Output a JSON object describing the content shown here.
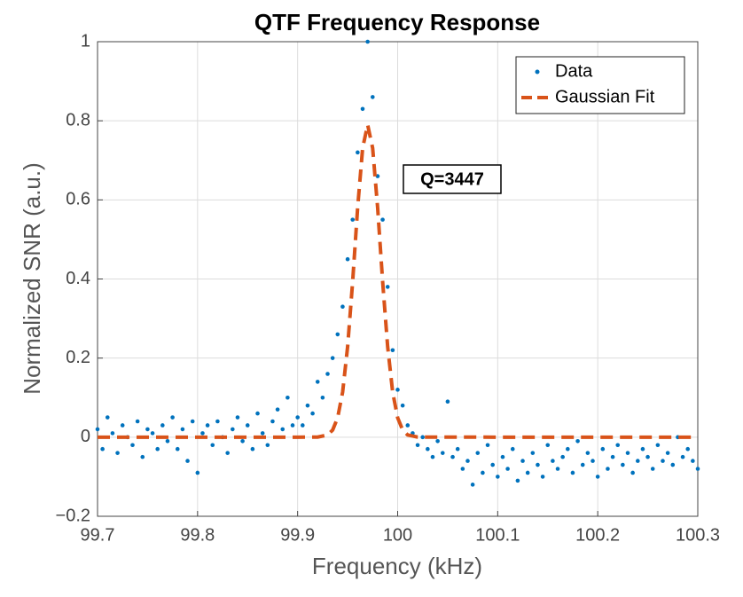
{
  "chart_data": {
    "type": "scatter",
    "title": "QTF Frequency Response",
    "xlabel": "Frequency (kHz)",
    "ylabel": "Normalized SNR (a.u.)",
    "annotation": "Q=3447",
    "xlim": [
      99.7,
      100.3
    ],
    "ylim": [
      -0.2,
      1
    ],
    "xticks": [
      99.7,
      99.8,
      99.9,
      100,
      100.1,
      100.2,
      100.3
    ],
    "yticks": [
      {
        "value": -0.2,
        "label": "−0.2"
      },
      0,
      0.2,
      0.4,
      0.6,
      0.8,
      1
    ],
    "grid": true,
    "legend": "upper right",
    "series": [
      {
        "name": "Data",
        "type": "scatter",
        "color": "#0072bd",
        "x": [
          99.7,
          99.705,
          99.71,
          99.715,
          99.72,
          99.725,
          99.73,
          99.735,
          99.74,
          99.745,
          99.75,
          99.755,
          99.76,
          99.765,
          99.77,
          99.775,
          99.78,
          99.785,
          99.79,
          99.795,
          99.8,
          99.805,
          99.81,
          99.815,
          99.82,
          99.825,
          99.83,
          99.835,
          99.84,
          99.845,
          99.85,
          99.855,
          99.86,
          99.865,
          99.87,
          99.875,
          99.88,
          99.885,
          99.89,
          99.895,
          99.9,
          99.905,
          99.91,
          99.915,
          99.92,
          99.925,
          99.93,
          99.935,
          99.94,
          99.945,
          99.95,
          99.955,
          99.96,
          99.965,
          99.97,
          99.975,
          99.98,
          99.985,
          99.99,
          99.995,
          100,
          100.005,
          100.01,
          100.015,
          100.02,
          100.025,
          100.03,
          100.035,
          100.04,
          100.045,
          100.05,
          100.055,
          100.06,
          100.065,
          100.07,
          100.075,
          100.08,
          100.085,
          100.09,
          100.095,
          100.1,
          100.105,
          100.11,
          100.115,
          100.12,
          100.125,
          100.13,
          100.135,
          100.14,
          100.145,
          100.15,
          100.155,
          100.16,
          100.165,
          100.17,
          100.175,
          100.18,
          100.185,
          100.19,
          100.195,
          100.2,
          100.205,
          100.21,
          100.215,
          100.22,
          100.225,
          100.23,
          100.235,
          100.24,
          100.245,
          100.25,
          100.255,
          100.26,
          100.265,
          100.27,
          100.275,
          100.28,
          100.285,
          100.29,
          100.295,
          100.3
        ],
        "values": [
          0.02,
          -0.03,
          0.05,
          0.01,
          -0.04,
          0.03,
          0.0,
          -0.02,
          0.04,
          -0.05,
          0.02,
          0.01,
          -0.03,
          0.03,
          -0.01,
          0.05,
          -0.03,
          0.02,
          -0.06,
          0.04,
          -0.09,
          0.01,
          0.03,
          -0.02,
          0.04,
          0.0,
          -0.04,
          0.02,
          0.05,
          -0.01,
          0.03,
          -0.03,
          0.06,
          0.01,
          -0.02,
          0.04,
          0.07,
          0.02,
          0.1,
          0.03,
          0.05,
          0.03,
          0.08,
          0.06,
          0.14,
          0.1,
          0.16,
          0.2,
          0.26,
          0.33,
          0.45,
          0.55,
          0.72,
          0.83,
          1.0,
          0.86,
          0.66,
          0.55,
          0.38,
          0.22,
          0.12,
          0.08,
          0.03,
          0.01,
          -0.02,
          0.0,
          -0.03,
          -0.05,
          -0.01,
          -0.04,
          0.09,
          -0.05,
          -0.03,
          -0.08,
          -0.06,
          -0.12,
          -0.04,
          -0.09,
          -0.02,
          -0.07,
          -0.1,
          -0.05,
          -0.08,
          -0.03,
          -0.11,
          -0.06,
          -0.09,
          -0.04,
          -0.07,
          -0.1,
          -0.02,
          -0.06,
          -0.08,
          -0.05,
          -0.03,
          -0.09,
          -0.01,
          -0.07,
          -0.04,
          -0.06,
          -0.1,
          -0.03,
          -0.08,
          -0.05,
          -0.02,
          -0.07,
          -0.04,
          -0.09,
          -0.06,
          -0.03,
          -0.05,
          -0.08,
          -0.02,
          -0.06,
          -0.04,
          -0.07,
          0.0,
          -0.05,
          -0.03,
          -0.06,
          -0.08
        ]
      },
      {
        "name": "Gaussian Fit",
        "type": "line",
        "color": "#d95319",
        "dashed": true,
        "x": [
          99.7,
          99.8,
          99.9,
          99.92,
          99.93,
          99.935,
          99.94,
          99.945,
          99.95,
          99.955,
          99.96,
          99.965,
          99.97,
          99.975,
          99.98,
          99.985,
          99.99,
          99.995,
          100,
          100.005,
          100.01,
          100.02,
          100.1,
          100.2,
          100.3
        ],
        "values": [
          0,
          0,
          0,
          0.0003,
          0.0056,
          0.018,
          0.049,
          0.114,
          0.229,
          0.393,
          0.58,
          0.731,
          0.79,
          0.731,
          0.58,
          0.393,
          0.229,
          0.114,
          0.049,
          0.018,
          0.0056,
          0.0003,
          0,
          0,
          0
        ]
      }
    ]
  }
}
